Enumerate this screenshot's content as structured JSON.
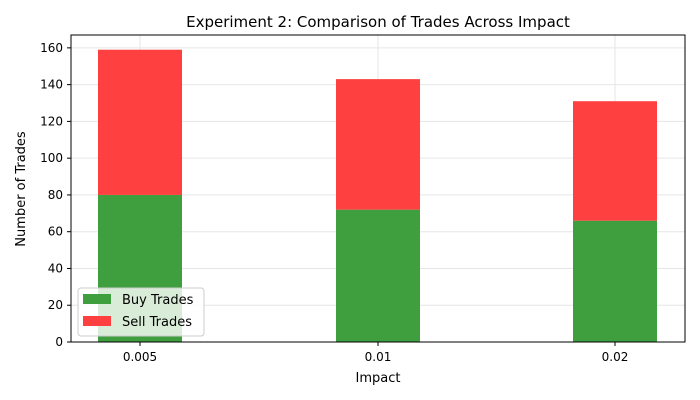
{
  "chart_data": {
    "type": "bar",
    "stacked": true,
    "title": "Experiment 2: Comparison of Trades Across Impact",
    "xlabel": "Impact",
    "ylabel": "Number of Trades",
    "categories": [
      "0.005",
      "0.01",
      "0.02"
    ],
    "series": [
      {
        "name": "Buy Trades",
        "values": [
          80,
          72,
          66
        ],
        "color": "#3f9f3f"
      },
      {
        "name": "Sell Trades",
        "values": [
          79,
          71,
          65
        ],
        "color": "#ff4040"
      }
    ],
    "ylim": [
      0,
      167
    ],
    "yticks": [
      0,
      20,
      40,
      60,
      80,
      100,
      120,
      140,
      160
    ],
    "grid": true,
    "legend_position": "lower-left"
  }
}
